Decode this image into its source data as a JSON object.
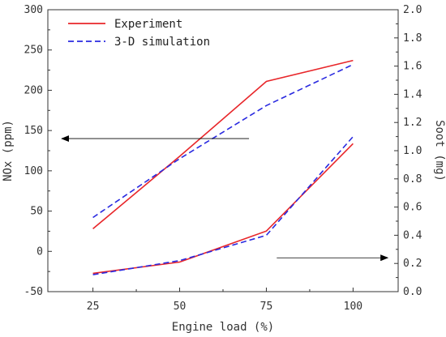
{
  "chart_data": {
    "type": "line",
    "title": "",
    "xlabel": "Engine load (%)",
    "ylabel_left": "NOx (ppm)",
    "ylabel_right": "Soot (mg)",
    "x": [
      25,
      50,
      75,
      100
    ],
    "x_tick_labels": [
      "25",
      "50",
      "75",
      "100"
    ],
    "xlim": [
      12,
      113
    ],
    "ylim_left": [
      -50,
      300
    ],
    "ylim_right": [
      0,
      2.0
    ],
    "y_left_ticks": [
      -50,
      0,
      50,
      100,
      150,
      200,
      250,
      300
    ],
    "y_left_tick_labels": [
      "-50",
      "0",
      "50",
      "100",
      "150",
      "200",
      "250",
      "300"
    ],
    "y_right_ticks": [
      0,
      0.2,
      0.4,
      0.6,
      0.8,
      1.0,
      1.2,
      1.4,
      1.6,
      1.8,
      2.0
    ],
    "y_right_tick_labels": [
      "0.0",
      "0.2",
      "0.4",
      "0.6",
      "0.8",
      "1.0",
      "1.2",
      "1.4",
      "1.6",
      "1.8",
      "2.0"
    ],
    "grid": false,
    "legend_position": "top-left",
    "series": [
      {
        "name": "Experiment",
        "axis": "left",
        "color": "#e8262a",
        "dash": "solid",
        "values": [
          28,
          118,
          211,
          237
        ]
      },
      {
        "name": "3-D simulation",
        "axis": "left",
        "color": "#2a2ae0",
        "dash": "dashed",
        "values": [
          42,
          115,
          181,
          232
        ]
      },
      {
        "name": "Experiment",
        "axis": "right",
        "color": "#e8262a",
        "dash": "solid",
        "show_in_legend": false,
        "values": [
          0.13,
          0.21,
          0.43,
          1.05
        ]
      },
      {
        "name": "3-D simulation",
        "axis": "right",
        "color": "#2a2ae0",
        "dash": "dashed",
        "show_in_legend": false,
        "values": [
          0.12,
          0.22,
          0.4,
          1.1
        ]
      }
    ],
    "annotations": [
      {
        "type": "arrow",
        "meaning": "points-to-left-axis",
        "from": {
          "x": 70,
          "y_left": 140
        },
        "to": {
          "x": 16,
          "y_left": 140
        }
      },
      {
        "type": "arrow",
        "meaning": "points-to-right-axis",
        "from": {
          "x": 78,
          "y_right": 0.24
        },
        "to": {
          "x": 110,
          "y_right": 0.24
        }
      }
    ]
  }
}
